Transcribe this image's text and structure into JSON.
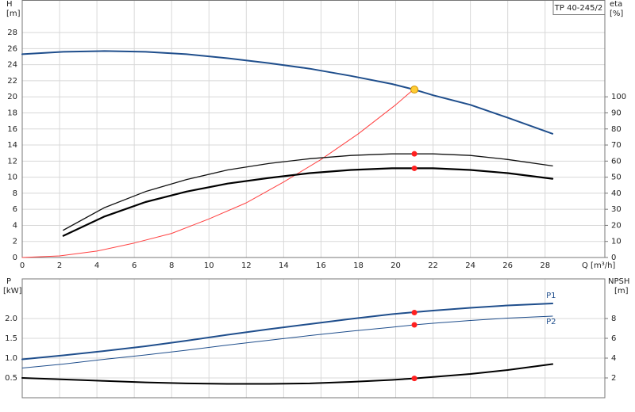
{
  "chart_data": [
    {
      "type": "line",
      "model": "TP 40-245/2",
      "y_label": "H",
      "y_unit": "[m]",
      "y2_label": "eta",
      "y2_unit": "[%]",
      "x_label": "Q [m³/h]",
      "xlim": [
        0,
        31.2
      ],
      "xticks": [
        0,
        2,
        4,
        6,
        8,
        10,
        12,
        14,
        16,
        18,
        20,
        22,
        24,
        26,
        28
      ],
      "ylim": [
        0,
        32
      ],
      "yticks": [
        0,
        2,
        4,
        6,
        8,
        10,
        12,
        14,
        16,
        18,
        20,
        22,
        24,
        26,
        28
      ],
      "y2lim": [
        0,
        160
      ],
      "y2ticks": [
        0,
        10,
        20,
        30,
        40,
        50,
        60,
        70,
        80,
        90,
        100
      ],
      "grid": true,
      "series": [
        {
          "color": "#1f4e8c",
          "x": [
            0,
            2.2,
            4.4,
            6.6,
            8.8,
            11,
            13.2,
            15.4,
            17.6,
            19.8,
            21,
            22,
            24,
            26,
            28.4
          ],
          "values": [
            25.3,
            25.6,
            25.7,
            25.6,
            25.3,
            24.8,
            24.2,
            23.5,
            22.6,
            21.6,
            20.9,
            20.2,
            19,
            17.4,
            15.4
          ]
        },
        {
          "color": "#ff4040",
          "axis": "y2",
          "x": [
            0,
            2,
            4,
            6,
            8,
            10,
            12,
            14,
            16,
            18,
            20,
            21
          ],
          "values": [
            0,
            1,
            4,
            9,
            15,
            24,
            34,
            47,
            61,
            77,
            95,
            105
          ]
        },
        {
          "color": "#111111",
          "x": [
            2.2,
            4.4,
            6.6,
            8.8,
            11,
            13.2,
            15.4,
            17.6,
            19.8,
            21,
            22,
            24,
            26,
            28.4
          ],
          "values": [
            3.4,
            6.2,
            8.2,
            9.7,
            10.9,
            11.7,
            12.3,
            12.7,
            12.9,
            12.9,
            12.9,
            12.7,
            12.2,
            11.4
          ]
        },
        {
          "color": "#000000",
          "x": [
            2.2,
            4.4,
            6.6,
            8.8,
            11,
            13.2,
            15.4,
            17.6,
            19.8,
            21,
            22,
            24,
            26,
            28.4
          ],
          "values": [
            2.7,
            5.1,
            6.9,
            8.2,
            9.2,
            9.9,
            10.5,
            10.9,
            11.1,
            11.1,
            11.1,
            10.9,
            10.5,
            9.8
          ]
        }
      ],
      "points": [
        {
          "x": 21,
          "value": 20.9,
          "color": "#ffcc33"
        },
        {
          "x": 21,
          "value": 12.9,
          "color": "#ff2020"
        },
        {
          "x": 21,
          "value": 11.1,
          "color": "#ff2020"
        }
      ]
    },
    {
      "type": "line",
      "y_label": "P",
      "y_unit": "[kW]",
      "y2_label": "NPSH",
      "y2_unit": "[m]",
      "xlim": [
        0,
        31.2
      ],
      "ylim": [
        0,
        3
      ],
      "yticks": [
        0.5,
        {
          "value": 1,
          "label": "1.0"
        },
        1.5,
        {
          "value": 2,
          "label": "2.0"
        }
      ],
      "y2lim": [
        0,
        12
      ],
      "y2ticks": [
        2,
        4,
        6,
        8
      ],
      "grid": true,
      "series": [
        {
          "name": "P1",
          "color": "#1f4e8c",
          "x": [
            0,
            2.2,
            4.4,
            6.6,
            8.8,
            11,
            13.2,
            15.4,
            17.6,
            19.8,
            21,
            22,
            24,
            26,
            28.4
          ],
          "values": [
            0.97,
            1.07,
            1.18,
            1.3,
            1.44,
            1.59,
            1.73,
            1.86,
            1.99,
            2.11,
            2.16,
            2.2,
            2.27,
            2.33,
            2.38
          ]
        },
        {
          "name": "P2",
          "color": "#1f4e8c",
          "x": [
            0,
            2.2,
            4.4,
            6.6,
            8.8,
            11,
            13.2,
            15.4,
            17.6,
            19.8,
            21,
            22,
            24,
            26,
            28.4
          ],
          "values": [
            0.75,
            0.85,
            0.97,
            1.08,
            1.2,
            1.33,
            1.45,
            1.57,
            1.68,
            1.78,
            1.84,
            1.88,
            1.95,
            2.01,
            2.06
          ]
        },
        {
          "color": "#000000",
          "axis": "y2",
          "x": [
            0,
            2.2,
            4.4,
            6.6,
            8.8,
            11,
            13.2,
            15.4,
            17.6,
            19.8,
            21,
            22,
            24,
            26,
            28.4
          ],
          "values": [
            2,
            1.85,
            1.7,
            1.55,
            1.45,
            1.4,
            1.4,
            1.45,
            1.6,
            1.8,
            1.95,
            2.1,
            2.4,
            2.8,
            3.4
          ]
        }
      ],
      "points": [
        {
          "x": 21,
          "value": 2.15,
          "color": "#ff2020"
        },
        {
          "x": 21,
          "value": 1.84,
          "color": "#ff2020"
        },
        {
          "x": 21,
          "value": 1.95,
          "color": "#ff2020",
          "axis": "y2"
        }
      ]
    }
  ]
}
